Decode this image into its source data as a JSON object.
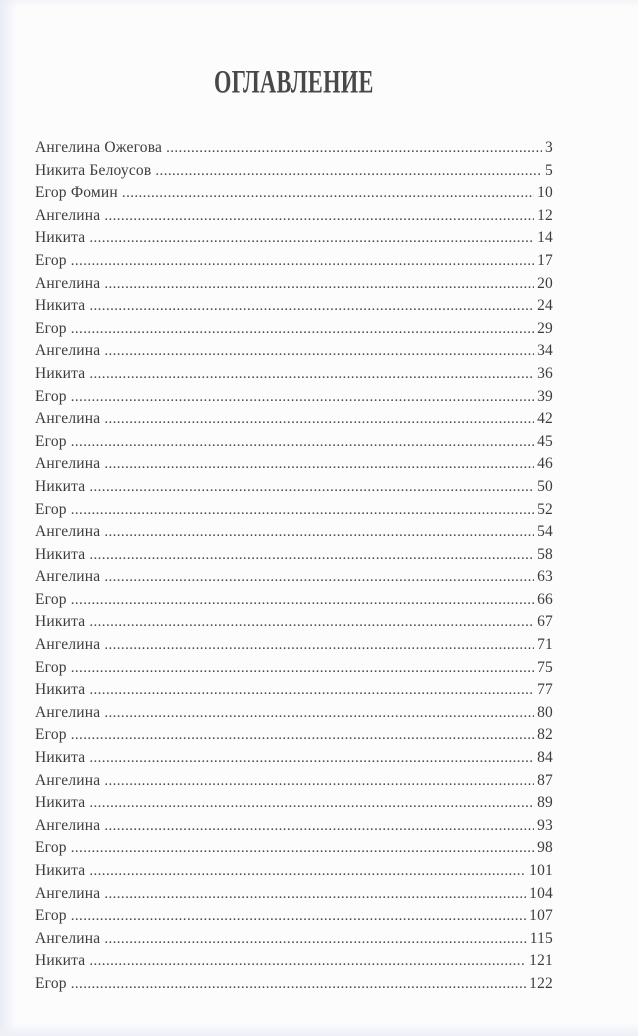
{
  "page": {
    "title": "ОГЛАВЛЕНИЕ"
  },
  "toc": {
    "entries": [
      {
        "label": "Ангелина Ожегова",
        "page": "3"
      },
      {
        "label": "Никита Белоусов",
        "page": "5"
      },
      {
        "label": "Егор Фомин",
        "page": "10"
      },
      {
        "label": "Ангелина",
        "page": "12"
      },
      {
        "label": "Никита",
        "page": "14"
      },
      {
        "label": "Егор",
        "page": "17"
      },
      {
        "label": "Ангелина",
        "page": "20"
      },
      {
        "label": "Никита",
        "page": "24"
      },
      {
        "label": "Егор",
        "page": "29"
      },
      {
        "label": "Ангелина",
        "page": "34"
      },
      {
        "label": "Никита",
        "page": "36"
      },
      {
        "label": "Егор",
        "page": "39"
      },
      {
        "label": "Ангелина",
        "page": "42"
      },
      {
        "label": "Егор",
        "page": "45"
      },
      {
        "label": "Ангелина",
        "page": "46"
      },
      {
        "label": "Никита",
        "page": "50"
      },
      {
        "label": "Егор",
        "page": "52"
      },
      {
        "label": "Ангелина",
        "page": "54"
      },
      {
        "label": "Никита",
        "page": "58"
      },
      {
        "label": "Ангелина",
        "page": "63"
      },
      {
        "label": "Егор",
        "page": "66"
      },
      {
        "label": "Никита",
        "page": "67"
      },
      {
        "label": "Ангелина",
        "page": "71"
      },
      {
        "label": "Егор",
        "page": "75"
      },
      {
        "label": "Никита",
        "page": "77"
      },
      {
        "label": "Ангелина",
        "page": "80"
      },
      {
        "label": "Егор",
        "page": "82"
      },
      {
        "label": "Никита",
        "page": "84"
      },
      {
        "label": "Ангелина",
        "page": "87"
      },
      {
        "label": "Никита",
        "page": "89"
      },
      {
        "label": "Ангелина",
        "page": "93"
      },
      {
        "label": "Егор",
        "page": "98"
      },
      {
        "label": "Никита",
        "page": "101"
      },
      {
        "label": "Ангелина",
        "page": "104"
      },
      {
        "label": "Егор",
        "page": "107"
      },
      {
        "label": "Ангелина",
        "page": "115"
      },
      {
        "label": "Никита",
        "page": "121"
      },
      {
        "label": "Егор",
        "page": "122"
      }
    ],
    "text_color": "#3c3c3c",
    "background_color": "#fcfcfd"
  }
}
